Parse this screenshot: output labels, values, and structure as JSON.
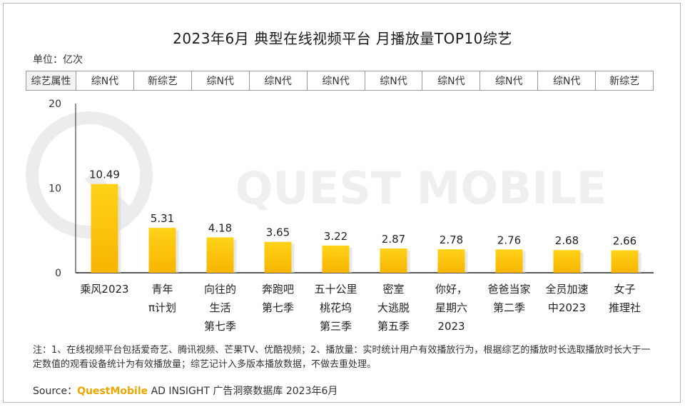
{
  "title": "2023年6月 典型在线视频平台 月播放量TOP10综艺",
  "unit_label": "单位：亿次",
  "attr_header": "综艺属性",
  "attributes": [
    "综N代",
    "新综艺",
    "综N代",
    "综N代",
    "综N代",
    "综N代",
    "综N代",
    "综N代",
    "综N代",
    "新综艺"
  ],
  "watermark": "QUEST MOBILE",
  "note": "注：1、在线视频平台包括爱奇艺、腾讯视频、芒果TV、优酷视频；2、播放量：实时统计用户有效播放行为，根据综艺的播放时长选取播放时长大于一定数值的观看设备统计为有效播放量；综艺记计入多版本播放数据，不做去重处理。",
  "source": {
    "prefix": "Source：",
    "brand": "QuestMobile",
    "rest": " AD INSIGHT 广告洞察数据库 2023年6月"
  },
  "colors": {
    "bar_top": "#ffd21a",
    "bar_bottom": "#f7b500",
    "axis": "#222222"
  },
  "chart_data": {
    "type": "bar",
    "categories": [
      [
        "乘风2023"
      ],
      [
        "青年",
        "π计划"
      ],
      [
        "向往的",
        "生活",
        "第七季"
      ],
      [
        "奔跑吧",
        "第七季"
      ],
      [
        "五十公里",
        "桃花坞",
        "第三季"
      ],
      [
        "密室",
        "大逃脱",
        "第五季"
      ],
      [
        "你好，",
        "星期六",
        "2023"
      ],
      [
        "爸爸当家",
        "第二季"
      ],
      [
        "全员加速",
        "中2023"
      ],
      [
        "女子",
        "推理社"
      ]
    ],
    "values": [
      10.49,
      5.31,
      4.18,
      3.65,
      3.22,
      2.87,
      2.78,
      2.76,
      2.68,
      2.66
    ],
    "value_labels": [
      "10.49",
      "5.31",
      "4.18",
      "3.65",
      "3.22",
      "2.87",
      "2.78",
      "2.76",
      "2.68",
      "2.66"
    ],
    "ylim": [
      0,
      20
    ],
    "yticks": [
      0,
      10,
      20
    ],
    "ylabel": "亿次"
  }
}
